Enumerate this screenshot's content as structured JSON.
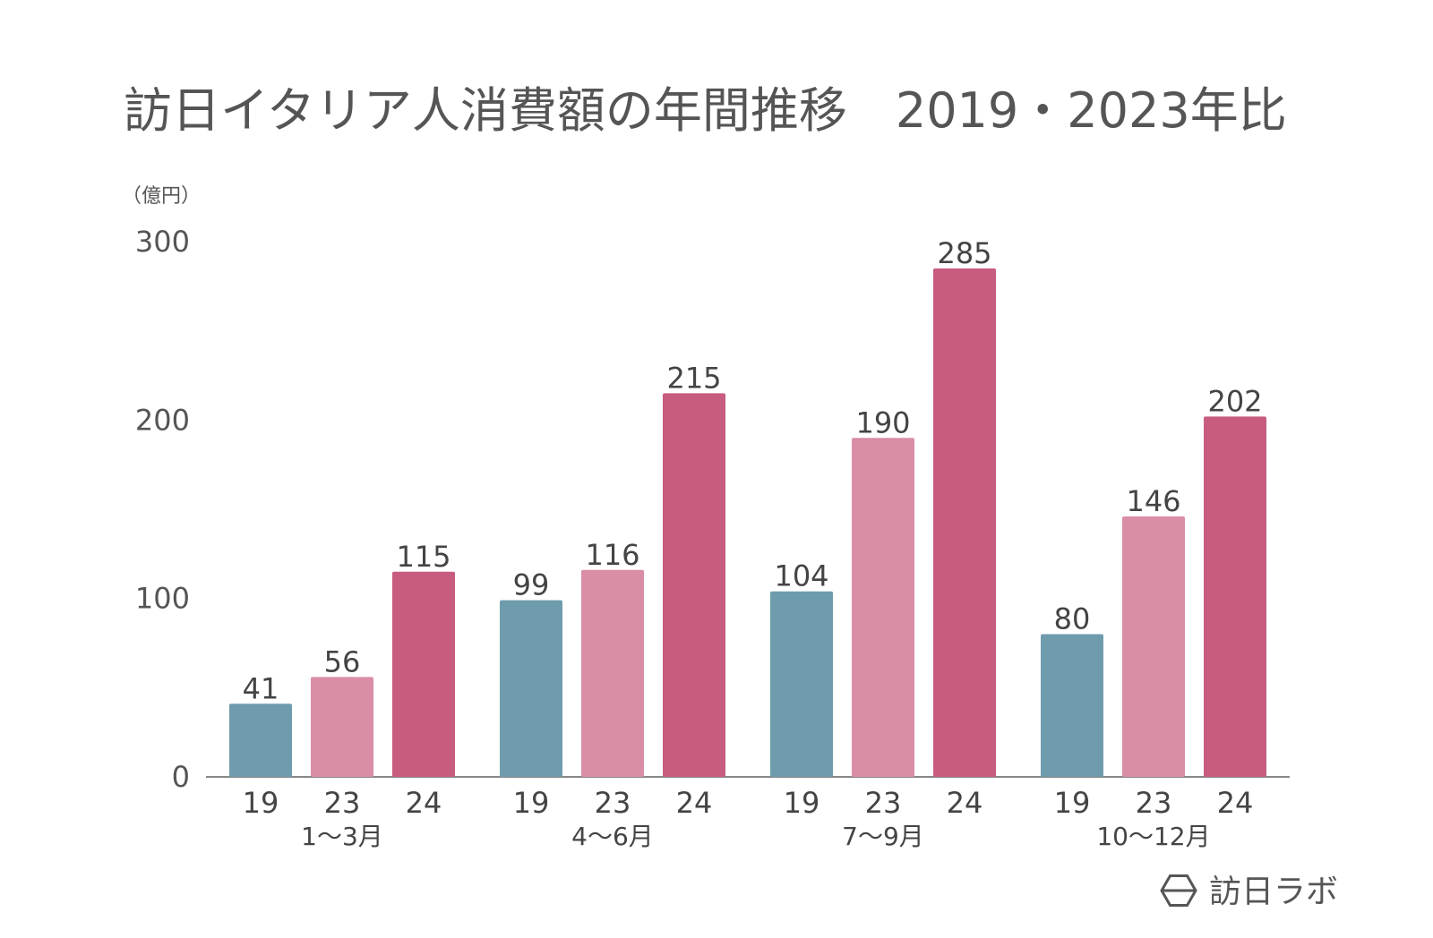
{
  "chart_data": {
    "type": "bar",
    "title": "訪日イタリア人消費額の年間推移　2019・2023年比",
    "unit_label": "（億円）",
    "ylim": [
      0,
      300
    ],
    "y_ticks": [
      0,
      100,
      200,
      300
    ],
    "groups": [
      {
        "label": "1〜3月",
        "bars": [
          {
            "category": "19",
            "value": 41
          },
          {
            "category": "23",
            "value": 56
          },
          {
            "category": "24",
            "value": 115
          }
        ]
      },
      {
        "label": "4〜6月",
        "bars": [
          {
            "category": "19",
            "value": 99
          },
          {
            "category": "23",
            "value": 116
          },
          {
            "category": "24",
            "value": 215
          }
        ]
      },
      {
        "label": "7〜9月",
        "bars": [
          {
            "category": "19",
            "value": 104
          },
          {
            "category": "23",
            "value": 190
          },
          {
            "category": "24",
            "value": 285
          }
        ]
      },
      {
        "label": "10〜12月",
        "bars": [
          {
            "category": "19",
            "value": 80
          },
          {
            "category": "23",
            "value": 146
          },
          {
            "category": "24",
            "value": 202
          }
        ]
      }
    ],
    "series_colors": {
      "19": "#6f9cac",
      "23": "#d98ea5",
      "24": "#c75c7e"
    },
    "grid": false,
    "legend": "none"
  },
  "logo": {
    "text": "訪日ラボ",
    "icon": "hexagon-logo-icon"
  }
}
